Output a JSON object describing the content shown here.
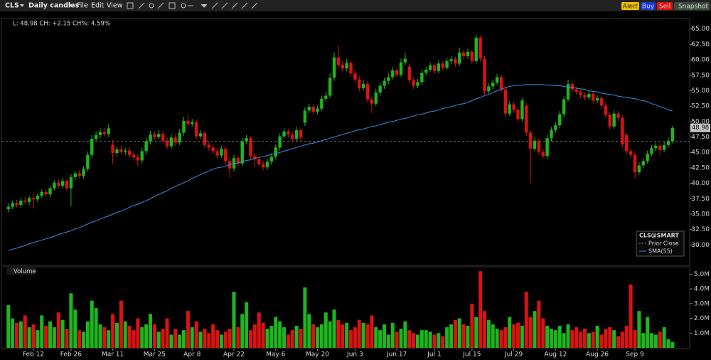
{
  "toolbar": {
    "symbol": "CLS",
    "period": "Daily candles",
    "menu": [
      "File",
      "Edit",
      "View"
    ],
    "buttons": [
      "Alert",
      "Buy",
      "Sell",
      "Snapshot"
    ]
  },
  "chart_data": [
    {
      "type": "candlestick",
      "info": "L: 48.98 CH: +2.15 CH%: 4.59%",
      "legend_title": "CLS@SMART",
      "up_color": "#1fb51f",
      "down_color": "#dc1212",
      "ylim": [
        26.7,
        66.7
      ],
      "yticks": [
        {
          "value": 30,
          "label": "30.00"
        },
        {
          "value": 32.5,
          "label": "32.50"
        },
        {
          "value": 35,
          "label": "35.00"
        },
        {
          "value": 37.5,
          "label": "37.50"
        },
        {
          "value": 40,
          "label": "40.00"
        },
        {
          "value": 42.5,
          "label": "42.50"
        },
        {
          "value": 45,
          "label": "45.00"
        },
        {
          "value": 47.5,
          "label": "47.50"
        },
        {
          "value": 50,
          "label": "50.00"
        },
        {
          "value": 52.5,
          "label": "52.50"
        },
        {
          "value": 55,
          "label": "55.00"
        },
        {
          "value": 57.5,
          "label": "57.50"
        },
        {
          "value": 60,
          "label": "60.00"
        },
        {
          "value": 62.5,
          "label": "62.50"
        },
        {
          "value": 65,
          "label": "65.00"
        }
      ],
      "grid": false,
      "categories": [
        null,
        null,
        null,
        null,
        null,
        null,
        "Feb 12",
        null,
        null,
        null,
        null,
        null,
        null,
        null,
        null,
        "Feb 26",
        null,
        null,
        null,
        null,
        null,
        null,
        null,
        null,
        null,
        "Mar 11",
        null,
        null,
        null,
        null,
        null,
        null,
        null,
        null,
        null,
        "Mar 25",
        null,
        null,
        null,
        null,
        null,
        null,
        null,
        null,
        "Apr 8",
        null,
        null,
        null,
        null,
        null,
        null,
        null,
        null,
        null,
        "Apr 22",
        null,
        null,
        null,
        null,
        null,
        null,
        null,
        null,
        null,
        "May 6",
        null,
        null,
        null,
        null,
        null,
        null,
        null,
        null,
        null,
        "May 20",
        null,
        null,
        null,
        null,
        null,
        null,
        null,
        null,
        "Jun 3",
        null,
        null,
        null,
        null,
        null,
        null,
        null,
        null,
        null,
        "Jun 17",
        null,
        null,
        null,
        null,
        null,
        null,
        null,
        null,
        "Jul 1",
        null,
        null,
        null,
        null,
        null,
        null,
        null,
        null,
        "Jul 15",
        null,
        null,
        null,
        null,
        null,
        null,
        null,
        null,
        null,
        "Jul 29",
        null,
        null,
        null,
        null,
        null,
        null,
        null,
        null,
        null,
        "Aug 12",
        null,
        null,
        null,
        null,
        null,
        null,
        null,
        null,
        null,
        "Aug 26",
        null,
        null,
        null,
        null,
        null,
        null,
        null,
        null,
        "Sep 9",
        null,
        null,
        null,
        null,
        null,
        null,
        null,
        null,
        null
      ],
      "open": [
        35.8,
        36.2,
        36.8,
        36.5,
        37.2,
        37.0,
        37.6,
        37.4,
        38.0,
        38.6,
        38.2,
        39.2,
        40.1,
        39.6,
        40.4,
        39.2,
        41.0,
        41.6,
        41.2,
        42.3,
        44.6,
        47.2,
        47.8,
        48.3,
        48.0,
        46.2,
        44.9,
        45.5,
        45.1,
        45.3,
        44.6,
        44.2,
        43.7,
        45.2,
        46.8,
        47.9,
        47.5,
        48.0,
        46.9,
        46.0,
        47.4,
        46.6,
        48.2,
        50.1,
        49.6,
        49.9,
        47.6,
        48.1,
        46.2,
        45.8,
        45.2,
        44.5,
        45.6,
        43.6,
        42.4,
        44.1,
        43.2,
        46.8,
        47.3,
        44.4,
        43.9,
        43.1,
        42.6,
        43.5,
        44.3,
        45.8,
        47.6,
        48.4,
        47.9,
        47.2,
        48.6,
        49.8,
        51.8,
        52.4,
        51.6,
        52.1,
        53.7,
        54.2,
        57.1,
        60.4,
        59.2,
        58.6,
        59.5,
        57.8,
        56.8,
        55.4,
        56.1,
        53.6,
        52.9,
        54.7,
        55.8,
        56.6,
        57.2,
        58.3,
        57.6,
        59.6,
        58.9,
        56.7,
        55.8,
        56.4,
        57.9,
        58.4,
        59.1,
        58.2,
        59.4,
        58.7,
        59.8,
        60.1,
        59.4,
        61.2,
        60.6,
        61.3,
        59.8,
        63.6,
        60.2,
        54.9,
        55.7,
        56.3,
        57.2,
        55.2,
        51.3,
        52.8,
        51.9,
        50.4,
        52.6,
        48.2,
        45.6,
        46.9,
        45.1,
        44.4,
        47.3,
        48.6,
        49.4,
        51.2,
        53.6,
        56.1,
        55.2,
        54.8,
        54.3,
        53.9,
        54.5,
        53.4,
        53.8,
        52.6,
        51.1,
        49.2,
        51.3,
        50.6,
        47.8,
        45.2,
        44.6,
        41.8,
        42.9,
        43.6,
        44.8,
        45.7,
        46.1,
        45.4,
        46.2,
        46.83
      ],
      "high": [
        36.7,
        37.2,
        37.3,
        37.6,
        37.8,
        38.0,
        38.3,
        38.4,
        39.0,
        39.1,
        39.6,
        40.5,
        40.6,
        40.9,
        40.8,
        41.5,
        42.0,
        42.1,
        42.8,
        45.2,
        47.8,
        48.4,
        48.9,
        49.0,
        49.6,
        47.0,
        46.0,
        46.1,
        45.8,
        45.9,
        45.2,
        44.8,
        45.8,
        47.4,
        48.5,
        48.4,
        48.6,
        48.5,
        47.4,
        48.0,
        47.9,
        48.8,
        50.8,
        51.2,
        50.4,
        50.3,
        48.6,
        48.5,
        46.8,
        46.3,
        45.7,
        46.1,
        46.0,
        44.2,
        44.6,
        44.5,
        47.4,
        47.8,
        47.6,
        44.9,
        44.3,
        43.6,
        44.0,
        44.8,
        46.3,
        48.1,
        48.9,
        48.8,
        48.3,
        49.1,
        49.0,
        52.3,
        52.9,
        52.8,
        52.6,
        54.2,
        54.8,
        57.8,
        61.2,
        62.3,
        59.8,
        60.1,
        59.9,
        58.3,
        57.4,
        56.7,
        56.6,
        54.1,
        55.3,
        56.3,
        57.1,
        57.8,
        58.8,
        58.7,
        60.2,
        61.2,
        59.4,
        57.2,
        56.9,
        58.4,
        58.9,
        59.6,
        59.5,
        59.9,
        59.8,
        60.3,
        60.6,
        60.5,
        62.0,
        61.7,
        61.8,
        61.7,
        64.1,
        63.9,
        60.6,
        56.2,
        56.8,
        57.7,
        57.6,
        55.7,
        53.3,
        53.2,
        52.3,
        53.9,
        53.0,
        48.6,
        47.4,
        47.3,
        45.6,
        47.8,
        49.1,
        49.9,
        51.7,
        54.1,
        56.8,
        56.5,
        55.6,
        55.2,
        54.7,
        55.0,
        54.9,
        54.3,
        54.2,
        53.0,
        51.5,
        51.9,
        51.7,
        51.0,
        48.2,
        45.6,
        45.0,
        43.4,
        44.1,
        45.3,
        46.2,
        46.6,
        46.5,
        46.7,
        47.3,
        49.3
      ],
      "low": [
        35.3,
        35.8,
        36.1,
        36.0,
        36.6,
        36.5,
        35.9,
        37.0,
        37.6,
        37.8,
        37.7,
        38.8,
        39.2,
        39.1,
        38.8,
        36.3,
        40.6,
        40.8,
        40.7,
        41.9,
        44.1,
        46.8,
        47.3,
        47.6,
        47.5,
        43.2,
        44.4,
        44.7,
        44.6,
        44.1,
        43.7,
        42.8,
        43.2,
        44.7,
        46.3,
        47.0,
        47.1,
        46.4,
        45.5,
        45.6,
        46.1,
        46.2,
        47.7,
        49.1,
        49.2,
        47.1,
        47.2,
        45.8,
        45.3,
        44.7,
        44.0,
        44.1,
        43.1,
        40.9,
        41.9,
        42.7,
        42.8,
        46.3,
        43.9,
        42.6,
        42.6,
        42.1,
        42.2,
        43.0,
        43.9,
        45.3,
        47.2,
        47.4,
        46.7,
        46.8,
        46.9,
        49.3,
        51.3,
        51.1,
        51.2,
        51.7,
        53.2,
        53.8,
        56.6,
        58.7,
        58.1,
        58.2,
        57.3,
        56.3,
        54.9,
        55.0,
        53.1,
        51.4,
        52.5,
        54.2,
        55.3,
        56.1,
        56.8,
        57.1,
        57.2,
        59.1,
        56.2,
        55.3,
        55.4,
        55.9,
        57.4,
        58.0,
        57.7,
        57.8,
        58.2,
        58.3,
        59.3,
        58.9,
        59.0,
        60.1,
        60.2,
        59.3,
        59.4,
        59.7,
        54.4,
        54.5,
        55.2,
        55.9,
        54.7,
        50.8,
        50.9,
        51.4,
        49.9,
        50.0,
        47.7,
        40.0,
        45.2,
        44.6,
        43.9,
        44.0,
        46.8,
        48.2,
        48.9,
        50.7,
        53.2,
        54.7,
        54.3,
        53.8,
        53.4,
        53.5,
        52.9,
        53.0,
        52.1,
        50.6,
        48.7,
        48.8,
        50.1,
        45.8,
        44.7,
        44.1,
        40.8,
        41.4,
        42.5,
        43.2,
        44.4,
        45.2,
        44.5,
        45.0,
        45.8,
        46.5
      ],
      "close": [
        36.2,
        36.8,
        36.5,
        37.2,
        37.0,
        37.6,
        37.4,
        38.0,
        38.6,
        38.2,
        39.2,
        40.1,
        39.6,
        40.4,
        39.2,
        41.0,
        41.6,
        41.2,
        42.3,
        44.6,
        47.2,
        47.8,
        48.3,
        48.0,
        48.9,
        44.9,
        45.5,
        45.1,
        45.3,
        44.6,
        44.2,
        43.7,
        45.2,
        46.8,
        47.9,
        47.5,
        48.0,
        46.9,
        46.0,
        47.4,
        46.6,
        48.2,
        50.1,
        49.6,
        49.9,
        47.6,
        48.1,
        46.2,
        45.8,
        45.2,
        44.5,
        45.6,
        43.6,
        42.4,
        44.1,
        43.2,
        46.8,
        47.3,
        44.4,
        43.9,
        43.1,
        42.6,
        43.5,
        44.3,
        45.8,
        47.6,
        48.4,
        47.9,
        47.2,
        48.6,
        47.4,
        51.8,
        52.4,
        51.6,
        52.1,
        53.7,
        54.2,
        57.1,
        60.4,
        59.2,
        58.6,
        59.5,
        57.8,
        56.8,
        55.4,
        56.1,
        53.6,
        52.9,
        54.7,
        55.8,
        56.6,
        57.2,
        58.3,
        57.6,
        59.6,
        60.2,
        56.7,
        55.8,
        56.4,
        57.9,
        58.4,
        59.1,
        58.2,
        59.4,
        58.7,
        59.8,
        60.1,
        59.4,
        61.2,
        60.6,
        61.3,
        59.8,
        63.6,
        60.2,
        54.9,
        55.7,
        56.3,
        57.2,
        55.2,
        51.3,
        52.8,
        51.9,
        50.4,
        53.4,
        48.2,
        45.6,
        46.9,
        45.1,
        44.4,
        47.3,
        48.6,
        49.4,
        51.2,
        53.6,
        56.1,
        55.2,
        54.8,
        54.3,
        53.9,
        54.5,
        53.4,
        53.8,
        52.6,
        51.1,
        49.2,
        51.3,
        50.6,
        46.3,
        45.2,
        44.6,
        41.8,
        42.9,
        43.6,
        44.8,
        45.7,
        46.1,
        45.4,
        46.2,
        46.83,
        48.98
      ],
      "sma": {
        "name": "SMA(55)",
        "color": "#3a8fe0",
        "values": [
          29.1,
          29.3,
          29.5,
          29.7,
          29.9,
          30.2,
          30.4,
          30.6,
          30.8,
          31.0,
          31.2,
          31.4,
          31.7,
          31.9,
          32.1,
          32.3,
          32.6,
          32.8,
          33.1,
          33.4,
          33.7,
          33.9,
          34.2,
          34.5,
          34.7,
          35.0,
          35.3,
          35.5,
          35.8,
          36.1,
          36.4,
          36.6,
          36.9,
          37.2,
          37.5,
          37.9,
          38.2,
          38.5,
          38.8,
          39.2,
          39.5,
          39.8,
          40.1,
          40.4,
          40.8,
          41.1,
          41.4,
          41.7,
          42.0,
          42.3,
          42.5,
          42.6,
          42.8,
          43.0,
          43.2,
          43.3,
          43.5,
          43.7,
          43.8,
          44.0,
          44.2,
          44.3,
          44.5,
          44.7,
          44.8,
          45.0,
          45.2,
          45.4,
          45.6,
          45.8,
          46.0,
          46.2,
          46.4,
          46.5,
          46.7,
          46.9,
          47.1,
          47.3,
          47.5,
          47.7,
          47.9,
          48.1,
          48.3,
          48.5,
          48.7,
          48.8,
          49.0,
          49.2,
          49.3,
          49.5,
          49.7,
          49.9,
          50.0,
          50.2,
          50.4,
          50.5,
          50.7,
          50.9,
          51.1,
          51.2,
          51.4,
          51.6,
          51.7,
          51.9,
          52.1,
          52.3,
          52.4,
          52.6,
          52.8,
          52.9,
          53.1,
          53.4,
          53.7,
          53.9,
          54.2,
          54.4,
          54.7,
          55.0,
          55.2,
          55.5,
          55.7,
          55.8,
          55.9,
          55.9,
          56.0,
          56.0,
          56.0,
          56.0,
          56.0,
          55.9,
          55.9,
          55.8,
          55.8,
          55.7,
          55.6,
          55.5,
          55.4,
          55.3,
          55.2,
          55.0,
          54.9,
          54.8,
          54.6,
          54.5,
          54.4,
          54.3,
          54.1,
          54.0,
          53.9,
          53.8,
          53.7,
          53.5,
          53.4,
          53.2,
          52.9,
          52.7,
          52.4,
          52.2,
          51.9,
          51.7
        ]
      },
      "prior_close": {
        "name": "Prior Close",
        "value": 46.83,
        "color": "#8a8a8a"
      }
    },
    {
      "type": "bar",
      "title": "Volume",
      "ylim": [
        0,
        5.45
      ],
      "yticks": [
        {
          "value": 1,
          "label": "1.0M"
        },
        {
          "value": 2,
          "label": "2.0M"
        },
        {
          "value": 3,
          "label": "3.0M"
        },
        {
          "value": 4,
          "label": "4.0M"
        },
        {
          "value": 5,
          "label": "5.0M"
        }
      ],
      "grid": false,
      "values": [
        2.9,
        2.0,
        1.7,
        1.8,
        2.2,
        1.4,
        1.6,
        1.2,
        2.2,
        1.5,
        1.8,
        1.4,
        2.4,
        1.9,
        1.3,
        3.7,
        2.6,
        1.2,
        1.1,
        1.8,
        3.2,
        2.7,
        1.6,
        1.4,
        1.2,
        2.3,
        1.7,
        3.2,
        1.8,
        1.5,
        1.2,
        2.0,
        1.4,
        1.6,
        2.3,
        1.6,
        1.1,
        1.3,
        2.0,
        0.9,
        1.3,
        0.9,
        1.2,
        2.5,
        1.4,
        1.8,
        1.1,
        1.3,
        1.0,
        1.6,
        1.2,
        0.9,
        1.1,
        1.3,
        3.8,
        1.4,
        2.3,
        3.1,
        1.2,
        1.6,
        2.4,
        1.7,
        1.3,
        1.5,
        2.1,
        1.8,
        1.4,
        0.9,
        1.2,
        1.5,
        1.3,
        4.1,
        2.3,
        1.6,
        1.4,
        1.6,
        2.4,
        1.8,
        2.6,
        1.9,
        1.6,
        1.7,
        1.2,
        1.4,
        1.9,
        1.7,
        1.6,
        2.2,
        1.4,
        1.2,
        1.6,
        0.9,
        1.7,
        1.1,
        1.3,
        1.8,
        1.2,
        1.0,
        0.9,
        1.2,
        1.2,
        1.1,
        0.9,
        1.0,
        0.8,
        1.4,
        1.6,
        1.9,
        2.0,
        1.6,
        1.5,
        3.0,
        2.1,
        5.2,
        2.5,
        1.9,
        1.6,
        1.3,
        1.2,
        1.4,
        2.1,
        1.6,
        1.7,
        1.5,
        3.8,
        2.1,
        2.5,
        3.2,
        2.0,
        1.5,
        1.3,
        1.2,
        1.5,
        1.0,
        1.6,
        1.2,
        1.4,
        1.1,
        1.3,
        1.0,
        1.1,
        1.5,
        0.9,
        1.3,
        1.4,
        1.2,
        0.8,
        1.1,
        1.5,
        4.3,
        1.2,
        2.5,
        1.0,
        2.1,
        1.0,
        0.9,
        1.1,
        1.4,
        0.6,
        0.4
      ]
    }
  ]
}
